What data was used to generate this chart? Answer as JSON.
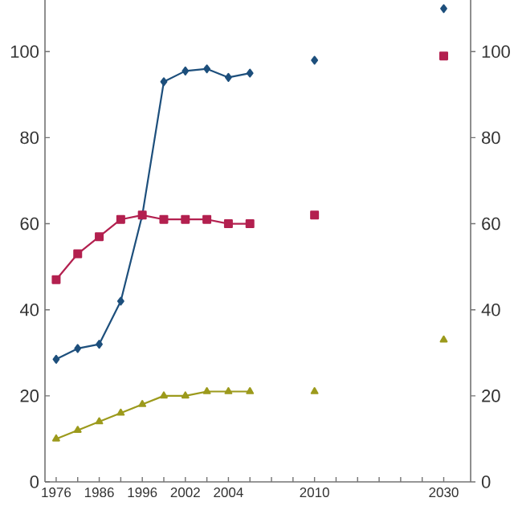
{
  "chart_data": {
    "type": "line",
    "categories": [
      "1976",
      null,
      "1986",
      null,
      "1996",
      null,
      "2002",
      null,
      "2004",
      null,
      null,
      null,
      "2010",
      null,
      null,
      null,
      null,
      null,
      "2030"
    ],
    "series": [
      {
        "color": "#1d4f7c",
        "marker": "diamond",
        "values": [
          28.5,
          31,
          32,
          42,
          62,
          93,
          95.5,
          96,
          94,
          95,
          null,
          null,
          98,
          null,
          null,
          null,
          null,
          null,
          110
        ]
      },
      {
        "color": "#b3204f",
        "marker": "square",
        "values": [
          47,
          53,
          57,
          61,
          62,
          61,
          61,
          61,
          60,
          60,
          null,
          null,
          62,
          null,
          null,
          null,
          null,
          null,
          99
        ]
      },
      {
        "color": "#9c9a1c",
        "marker": "triangle",
        "values": [
          10,
          12,
          14,
          16,
          18,
          20,
          20,
          21,
          21,
          21,
          null,
          null,
          21,
          null,
          null,
          null,
          null,
          null,
          33
        ]
      }
    ],
    "ylim": [
      0,
      112
    ],
    "yticks": [
      0,
      20,
      40,
      60,
      80,
      100
    ],
    "y2lim": [
      0,
      112
    ],
    "y2ticks": [
      0,
      20,
      40,
      60,
      80,
      100
    ],
    "line_style": "solid"
  }
}
